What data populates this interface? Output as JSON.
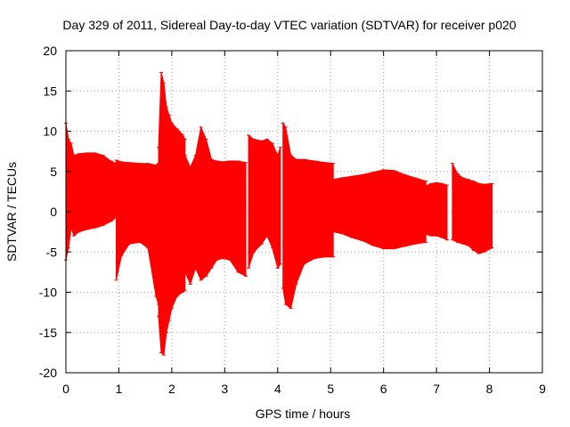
{
  "chart_data": {
    "type": "scatter",
    "title": "Day 329 of 2011, Sidereal Day-to-day VTEC variation (SDTVAR) for receiver p020",
    "xlabel": "GPS time / hours",
    "ylabel": "SDTVAR / TECUs",
    "xlim": [
      0,
      9
    ],
    "ylim": [
      -20,
      20
    ],
    "xticks": [
      0,
      1,
      2,
      3,
      4,
      5,
      6,
      7,
      8,
      9
    ],
    "yticks": [
      -20,
      -15,
      -10,
      -5,
      0,
      5,
      10,
      15,
      20
    ],
    "grid": true,
    "grid_style": "dotted",
    "series_color": "#ff0000",
    "series": [
      {
        "name": "SDTVAR with error bars (min/max envelope per segment)",
        "segments": [
          {
            "x": [
              0.0,
              0.05,
              0.1,
              0.15,
              0.25,
              0.4,
              0.55,
              0.7,
              0.85,
              0.95
            ],
            "upper": [
              11.0,
              9.0,
              8.5,
              7.0,
              7.2,
              7.3,
              7.3,
              7.0,
              6.3,
              6.0
            ],
            "lower": [
              -6.0,
              -4.5,
              -2.0,
              -3.0,
              -2.5,
              -2.2,
              -2.0,
              -1.7,
              -1.2,
              -0.7
            ]
          },
          {
            "x": [
              0.95,
              1.05,
              1.2,
              1.4,
              1.55,
              1.7,
              1.75
            ],
            "upper": [
              6.4,
              6.2,
              6.1,
              6.0,
              6.0,
              5.8,
              6.0
            ],
            "lower": [
              -8.5,
              -5.5,
              -4.0,
              -3.8,
              -4.5,
              -10.5,
              -11.5
            ]
          },
          {
            "x": [
              1.75,
              1.8,
              1.85,
              1.9,
              1.95,
              2.0,
              2.1,
              2.2,
              2.25
            ],
            "upper": [
              8.0,
              17.3,
              16.0,
              13.0,
              12.0,
              11.0,
              10.3,
              9.6,
              9.0
            ],
            "lower": [
              -13.0,
              -17.5,
              -17.8,
              -15.0,
              -13.5,
              -12.0,
              -10.5,
              -10.0,
              -9.8
            ]
          },
          {
            "x": [
              2.25,
              2.35,
              2.45,
              2.55,
              2.65,
              2.75,
              2.85,
              2.95,
              3.1,
              3.25,
              3.4
            ],
            "upper": [
              7.0,
              5.5,
              7.0,
              10.5,
              9.0,
              6.5,
              6.3,
              6.2,
              6.3,
              6.3,
              6.1
            ],
            "lower": [
              -7.5,
              -9.0,
              -7.0,
              -8.5,
              -8.0,
              -7.0,
              -6.0,
              -5.8,
              -6.0,
              -7.5,
              -8.0
            ]
          },
          {
            "x": [
              3.45,
              3.55,
              3.7,
              3.8,
              3.9,
              4.0,
              4.05
            ],
            "upper": [
              9.5,
              9.0,
              8.8,
              9.0,
              8.5,
              7.0,
              8.0
            ],
            "lower": [
              -7.0,
              -5.0,
              -4.0,
              -3.0,
              -4.5,
              -7.0,
              -6.5
            ]
          },
          {
            "x": [
              4.1,
              4.15,
              4.25,
              4.35,
              4.5,
              4.7,
              4.9,
              5.05
            ],
            "upper": [
              11.0,
              10.5,
              7.0,
              6.5,
              6.5,
              6.3,
              6.1,
              6.0
            ],
            "lower": [
              -9.5,
              -11.5,
              -12.0,
              -9.0,
              -6.5,
              -5.8,
              -5.6,
              -5.6
            ]
          },
          {
            "x": [
              5.05,
              5.2,
              5.4,
              5.6,
              5.8,
              6.0,
              6.2,
              6.4,
              6.6,
              6.8
            ],
            "upper": [
              4.0,
              4.2,
              4.4,
              4.6,
              4.9,
              5.2,
              5.1,
              4.6,
              4.2,
              3.8
            ],
            "lower": [
              -2.5,
              -2.7,
              -3.2,
              -3.6,
              -4.2,
              -4.6,
              -4.6,
              -4.3,
              -4.0,
              -3.8
            ]
          },
          {
            "x": [
              6.8,
              6.9,
              7.0,
              7.1,
              7.2
            ],
            "upper": [
              3.2,
              3.5,
              3.6,
              3.5,
              3.3
            ],
            "lower": [
              -2.8,
              -3.0,
              -3.0,
              -3.2,
              -3.5
            ]
          },
          {
            "x": [
              7.3,
              7.4,
              7.5,
              7.6,
              7.7,
              7.8,
              7.9,
              8.05
            ],
            "upper": [
              6.0,
              4.7,
              4.2,
              4.0,
              3.8,
              3.5,
              3.4,
              3.5
            ],
            "lower": [
              -3.5,
              -3.8,
              -4.0,
              -4.2,
              -4.8,
              -5.2,
              -5.0,
              -4.5
            ]
          }
        ]
      }
    ]
  }
}
